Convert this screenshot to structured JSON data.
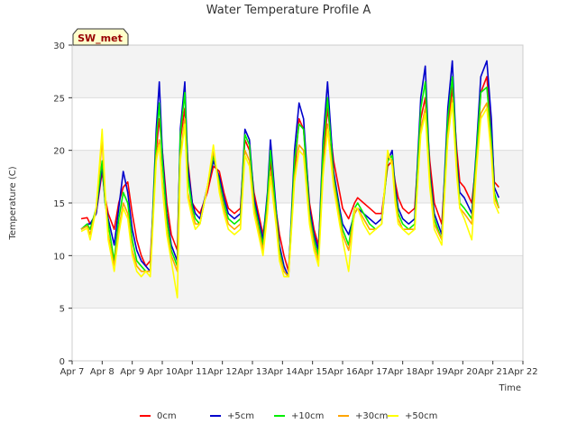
{
  "chart_data": {
    "type": "line",
    "title": "Water Temperature Profile A",
    "xlabel": "Time",
    "ylabel": "Temperature (C)",
    "annotation": "SW_met",
    "xlim": [
      7,
      22
    ],
    "ylim": [
      0,
      30
    ],
    "yticks": [
      0,
      5,
      10,
      15,
      20,
      25,
      30
    ],
    "xticks": [
      {
        "v": 7,
        "label": "Apr 7"
      },
      {
        "v": 8,
        "label": "Apr 8"
      },
      {
        "v": 9,
        "label": "Apr 9"
      },
      {
        "v": 10,
        "label": "Apr 10"
      },
      {
        "v": 11,
        "label": "Apr 11"
      },
      {
        "v": 12,
        "label": "Apr 12"
      },
      {
        "v": 13,
        "label": "Apr 13"
      },
      {
        "v": 14,
        "label": "Apr 14"
      },
      {
        "v": 15,
        "label": "Apr 15"
      },
      {
        "v": 16,
        "label": "Apr 16"
      },
      {
        "v": 17,
        "label": "Apr 17"
      },
      {
        "v": 18,
        "label": "Apr 18"
      },
      {
        "v": 19,
        "label": "Apr 19"
      },
      {
        "v": 20,
        "label": "Apr 20"
      },
      {
        "v": 21,
        "label": "Apr 21"
      },
      {
        "v": 22,
        "label": "Apr 22"
      }
    ],
    "grid": true,
    "legend_position": "bottom",
    "x": [
      7.3,
      7.5,
      7.6,
      7.8,
      8.0,
      8.1,
      8.2,
      8.4,
      8.55,
      8.7,
      8.85,
      9.0,
      9.15,
      9.3,
      9.45,
      9.6,
      9.8,
      9.9,
      10.0,
      10.15,
      10.3,
      10.5,
      10.6,
      10.75,
      10.85,
      11.0,
      11.1,
      11.25,
      11.5,
      11.7,
      11.9,
      12.05,
      12.2,
      12.4,
      12.6,
      12.75,
      12.9,
      13.05,
      13.2,
      13.35,
      13.5,
      13.6,
      13.8,
      13.9,
      14.05,
      14.2,
      14.4,
      14.55,
      14.7,
      14.9,
      15.05,
      15.2,
      15.35,
      15.5,
      15.7,
      15.9,
      16.0,
      16.2,
      16.4,
      16.5,
      16.7,
      16.9,
      17.1,
      17.3,
      17.5,
      17.65,
      17.75,
      17.85,
      18.0,
      18.2,
      18.4,
      18.6,
      18.75,
      18.9,
      19.05,
      19.3,
      19.5,
      19.65,
      19.8,
      19.9,
      20.05,
      20.3,
      20.45,
      20.6,
      20.8,
      20.95,
      21.05,
      21.2
    ],
    "series": [
      {
        "name": "0cm",
        "color": "#ff0000",
        "values": [
          13.5,
          13.6,
          13.0,
          14.0,
          18.0,
          15.5,
          14.0,
          12.5,
          15.0,
          16.5,
          17.0,
          14.0,
          11.5,
          10.0,
          9.0,
          9.5,
          20.0,
          23.0,
          20.0,
          15.0,
          12.0,
          10.5,
          21.0,
          24.0,
          19.0,
          15.0,
          14.5,
          14.0,
          16.0,
          18.5,
          18.0,
          16.0,
          14.5,
          14.0,
          14.5,
          21.0,
          20.0,
          16.0,
          14.0,
          12.0,
          15.0,
          19.0,
          14.0,
          12.0,
          10.0,
          8.5,
          18.0,
          23.0,
          22.0,
          15.0,
          12.5,
          11.0,
          19.0,
          24.0,
          19.0,
          16.0,
          14.5,
          13.5,
          15.0,
          15.5,
          15.0,
          14.5,
          14.0,
          14.0,
          18.5,
          19.0,
          17.0,
          15.5,
          14.5,
          14.0,
          14.5,
          23.0,
          25.0,
          19.0,
          15.0,
          13.0,
          22.0,
          26.0,
          20.0,
          17.0,
          16.5,
          15.0,
          19.0,
          25.5,
          27.0,
          22.0,
          17.0,
          16.5
        ]
      },
      {
        "name": "+5cm",
        "color": "#0000cc",
        "values": [
          12.5,
          13.0,
          13.0,
          14.0,
          18.5,
          15.0,
          13.5,
          11.0,
          14.5,
          18.0,
          16.0,
          12.5,
          10.5,
          9.5,
          9.0,
          8.5,
          22.0,
          26.5,
          20.0,
          14.0,
          11.0,
          9.5,
          22.0,
          26.5,
          18.5,
          15.0,
          14.0,
          13.5,
          16.5,
          19.0,
          17.5,
          15.5,
          14.0,
          13.5,
          14.0,
          22.0,
          21.0,
          15.5,
          13.5,
          11.5,
          16.0,
          21.0,
          14.0,
          11.0,
          9.0,
          8.0,
          20.0,
          24.5,
          23.0,
          14.5,
          12.0,
          10.5,
          21.0,
          26.5,
          18.0,
          14.5,
          13.0,
          12.0,
          14.0,
          14.5,
          14.0,
          13.5,
          13.0,
          13.5,
          19.0,
          20.0,
          16.5,
          14.5,
          13.5,
          13.0,
          13.5,
          25.0,
          28.0,
          18.0,
          14.0,
          12.0,
          24.0,
          28.5,
          19.0,
          16.0,
          15.5,
          14.0,
          20.0,
          27.0,
          28.5,
          23.0,
          16.5,
          15.5
        ]
      },
      {
        "name": "+10cm",
        "color": "#00ee00",
        "values": [
          12.5,
          13.0,
          12.5,
          14.5,
          19.0,
          15.0,
          13.0,
          9.5,
          13.5,
          16.0,
          15.0,
          11.5,
          9.5,
          9.0,
          8.5,
          8.5,
          21.0,
          24.5,
          19.0,
          13.5,
          10.5,
          9.0,
          21.5,
          25.5,
          17.5,
          14.5,
          13.5,
          13.0,
          16.5,
          19.5,
          17.0,
          15.0,
          13.5,
          13.0,
          13.5,
          21.5,
          20.5,
          15.0,
          13.0,
          11.0,
          15.5,
          20.0,
          13.5,
          10.5,
          8.5,
          8.0,
          19.0,
          22.5,
          22.0,
          14.0,
          11.5,
          10.0,
          20.0,
          25.0,
          17.5,
          14.0,
          12.5,
          11.0,
          14.5,
          15.0,
          14.0,
          13.0,
          12.5,
          13.0,
          19.0,
          19.5,
          16.0,
          14.0,
          13.0,
          12.5,
          13.0,
          24.0,
          26.5,
          17.5,
          13.5,
          11.5,
          23.0,
          27.0,
          18.5,
          15.0,
          14.5,
          13.5,
          19.5,
          25.5,
          26.0,
          21.0,
          16.0,
          14.5
        ]
      },
      {
        "name": "+30cm",
        "color": "#ffa500",
        "values": [
          12.5,
          12.8,
          12.0,
          14.5,
          21.0,
          15.5,
          12.0,
          9.0,
          12.5,
          15.0,
          14.0,
          10.5,
          9.0,
          8.5,
          8.5,
          8.5,
          19.5,
          21.0,
          17.0,
          12.5,
          10.0,
          8.5,
          19.5,
          23.0,
          16.0,
          14.0,
          13.0,
          13.0,
          16.5,
          20.0,
          16.5,
          14.5,
          13.0,
          12.5,
          13.0,
          20.0,
          19.0,
          14.5,
          12.5,
          10.5,
          14.5,
          18.0,
          13.0,
          10.0,
          8.5,
          8.0,
          17.5,
          20.5,
          20.0,
          13.5,
          11.0,
          9.5,
          18.0,
          22.5,
          17.0,
          13.5,
          12.0,
          10.5,
          14.0,
          14.5,
          13.5,
          12.5,
          12.5,
          13.0,
          19.5,
          19.0,
          15.5,
          13.5,
          12.5,
          12.5,
          12.5,
          22.0,
          24.0,
          17.0,
          13.0,
          11.5,
          21.5,
          25.0,
          18.0,
          14.5,
          14.0,
          13.0,
          18.5,
          23.5,
          24.5,
          20.0,
          15.5,
          14.5
        ]
      },
      {
        "name": "+50cm",
        "color": "#ffff00",
        "values": [
          12.3,
          12.6,
          11.5,
          14.5,
          22.0,
          16.0,
          11.5,
          8.5,
          12.0,
          14.5,
          13.5,
          10.0,
          8.5,
          8.0,
          8.5,
          8.0,
          19.0,
          20.5,
          16.5,
          12.0,
          9.5,
          6.0,
          19.0,
          22.5,
          15.5,
          13.5,
          12.5,
          13.0,
          16.5,
          20.5,
          16.0,
          14.0,
          12.5,
          12.0,
          12.5,
          19.5,
          18.5,
          14.0,
          12.0,
          10.0,
          14.0,
          17.5,
          12.5,
          9.5,
          8.0,
          8.0,
          17.0,
          20.0,
          19.5,
          13.0,
          10.5,
          9.0,
          17.5,
          22.0,
          16.5,
          13.0,
          11.5,
          8.5,
          14.5,
          14.5,
          13.0,
          12.0,
          12.5,
          13.0,
          20.0,
          18.5,
          15.0,
          13.0,
          12.5,
          12.0,
          12.5,
          21.5,
          23.5,
          16.5,
          12.5,
          11.0,
          21.0,
          24.5,
          17.5,
          14.5,
          13.5,
          11.5,
          18.0,
          23.0,
          24.0,
          19.5,
          15.0,
          14.0
        ]
      }
    ]
  }
}
